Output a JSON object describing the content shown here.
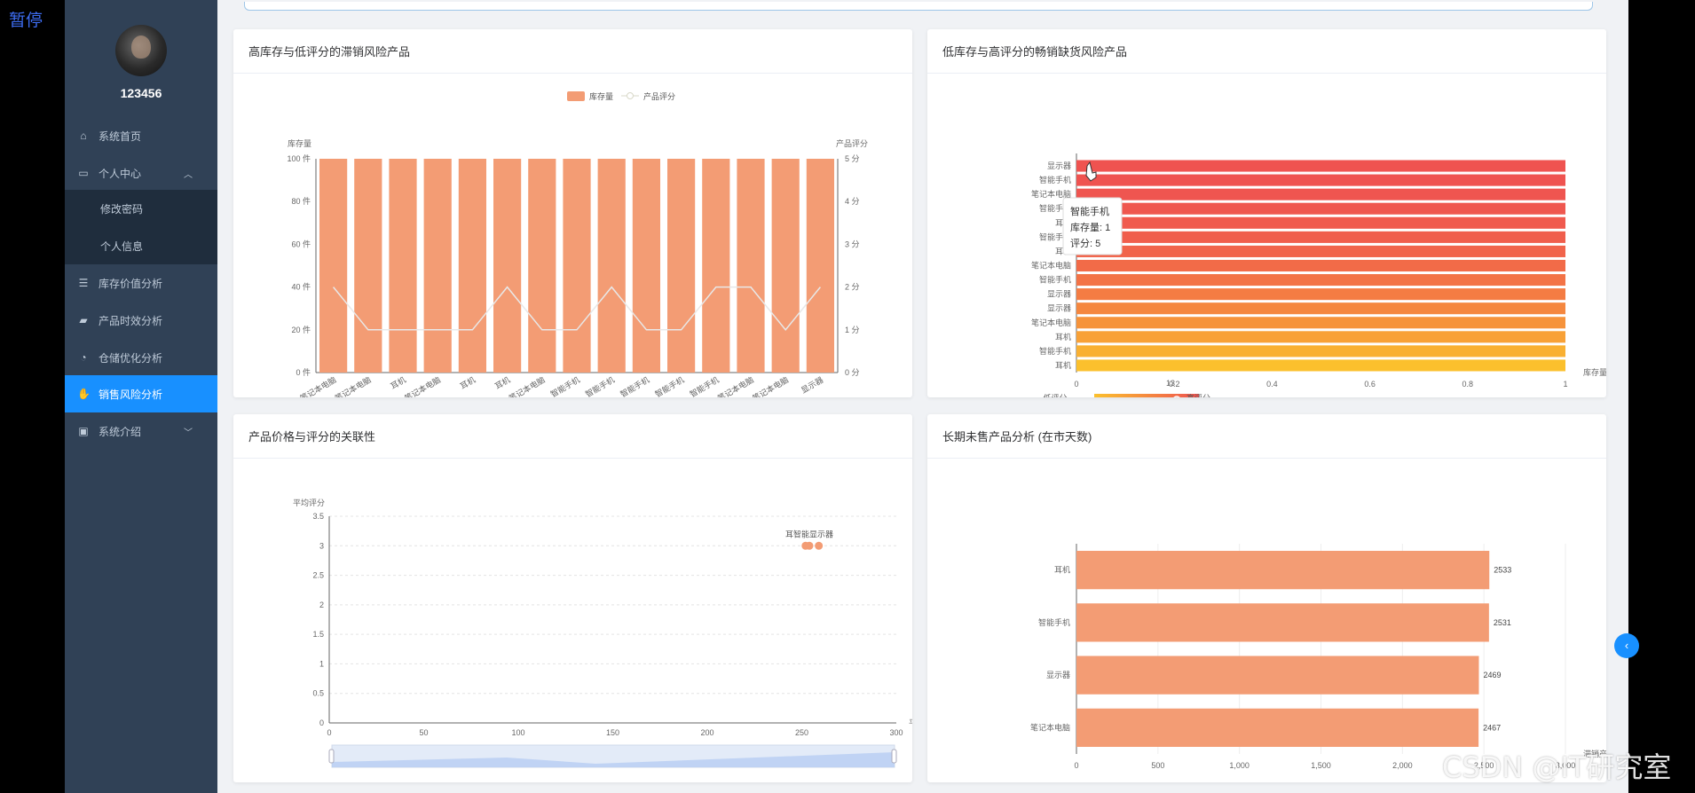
{
  "overlay": {
    "pause_label": "暂停",
    "watermark": "CSDN @IT研究室"
  },
  "sidebar": {
    "username": "123456",
    "items": [
      {
        "label": "系统首页",
        "icon": "home-icon"
      },
      {
        "label": "个人中心",
        "icon": "user-card-icon"
      },
      {
        "label": "修改密码"
      },
      {
        "label": "个人信息"
      },
      {
        "label": "库存价值分析",
        "icon": "list-icon"
      },
      {
        "label": "产品时效分析",
        "icon": "comment-icon"
      },
      {
        "label": "仓储优化分析",
        "icon": "gauge-icon"
      },
      {
        "label": "销售风险分析",
        "icon": "thumb-icon"
      },
      {
        "label": "系统介绍",
        "icon": "briefcase-icon"
      }
    ]
  },
  "cards": {
    "c1": {
      "title": "高库存与低评分的滞销风险产品"
    },
    "c2": {
      "title": "低库存与高评分的畅销缺货风险产品"
    },
    "c3": {
      "title": "产品价格与评分的关联性"
    },
    "c4": {
      "title": "长期未售产品分析 (在市天数)"
    }
  },
  "chart_data": [
    {
      "type": "bar",
      "title": "高库存与低评分的滞销风险产品",
      "categories": [
        "笔记本电脑",
        "笔记本电脑",
        "耳机",
        "笔记本电脑",
        "耳机",
        "耳机",
        "笔记本电脑",
        "智能手机",
        "智能手机",
        "智能手机",
        "智能手机",
        "智能手机",
        "笔记本电脑",
        "笔记本电脑",
        "显示器"
      ],
      "series": [
        {
          "name": "库存量",
          "values": [
            100,
            100,
            100,
            100,
            100,
            100,
            100,
            100,
            100,
            100,
            100,
            100,
            100,
            100,
            100
          ],
          "color": "#f39c74"
        },
        {
          "name": "产品评分",
          "type": "line",
          "axis": "right",
          "values": [
            2,
            1,
            1,
            1,
            1,
            2,
            1,
            1,
            2,
            1,
            1,
            2,
            2,
            1,
            2
          ],
          "color": "#e8e8e8"
        }
      ],
      "ylabel": "库存量",
      "ylabel_right": "产品评分",
      "ylim": [
        0,
        100
      ],
      "ylim_right": [
        0,
        5
      ],
      "yticks": [
        "0 件",
        "20 件",
        "40 件",
        "60 件",
        "80 件",
        "100 件"
      ],
      "yticks_right": [
        "0 分",
        "1 分",
        "2 分",
        "3 分",
        "4 分",
        "5 分"
      ],
      "legend": "top-center"
    },
    {
      "type": "bar",
      "orientation": "horizontal",
      "title": "低库存与高评分的畅销缺货风险产品",
      "categories": [
        "显示器",
        "智能手机",
        "笔记本电脑",
        "智能手机",
        "耳机",
        "智能手机",
        "耳机",
        "笔记本电脑",
        "智能手机",
        "显示器",
        "显示器",
        "笔记本电脑",
        "耳机",
        "智能手机",
        "耳机"
      ],
      "values": [
        1,
        1,
        1,
        1,
        1,
        1,
        1,
        1,
        1,
        1,
        1,
        1,
        1,
        1,
        1
      ],
      "xlim": [
        0,
        1
      ],
      "xticks": [
        "0",
        "0.2",
        "0.4",
        "0.6",
        "0.8",
        "1"
      ],
      "xlabel": "库存量",
      "visual_map": {
        "low_label": "低评分",
        "high_label": "高评分",
        "value_label": "13",
        "low_color": "#fbc02d",
        "high_color": "#ef5350"
      },
      "tooltip": {
        "name": "智能手机",
        "line1": "库存量: 1",
        "line2": "评分: 5"
      }
    },
    {
      "type": "scatter",
      "title": "产品价格与评分的关联性",
      "points": [
        {
          "x": 252,
          "y": 3,
          "label": "耳机"
        },
        {
          "x": 254,
          "y": 3,
          "label": "智能手机"
        },
        {
          "x": 259,
          "y": 3,
          "label": "显示器"
        }
      ],
      "point_label_text": "耳智能显示器",
      "xlim": [
        0,
        300
      ],
      "ylim": [
        0,
        3.5
      ],
      "xticks": [
        "0",
        "50",
        "100",
        "150",
        "200",
        "250",
        "300"
      ],
      "yticks": [
        "0",
        "0.5",
        "1",
        "1.5",
        "2",
        "2.5",
        "3",
        "3.5"
      ],
      "xlabel": "平均价格",
      "ylabel": "平均评分",
      "grid": true,
      "datazoom": true,
      "color": "#f39c74"
    },
    {
      "type": "bar",
      "orientation": "horizontal",
      "title": "长期未售产品分析 (在市天数)",
      "categories": [
        "耳机",
        "智能手机",
        "显示器",
        "笔记本电脑"
      ],
      "values": [
        2533,
        2531,
        2469,
        2467
      ],
      "value_labels": [
        "2533",
        "2531",
        "2469",
        "2467"
      ],
      "xlim": [
        0,
        3000
      ],
      "xticks": [
        "0",
        "500",
        "1,000",
        "1,500",
        "2,000",
        "2,500",
        "3,000"
      ],
      "xlabel": "滞销产品数量",
      "color": "#f39c74"
    }
  ]
}
